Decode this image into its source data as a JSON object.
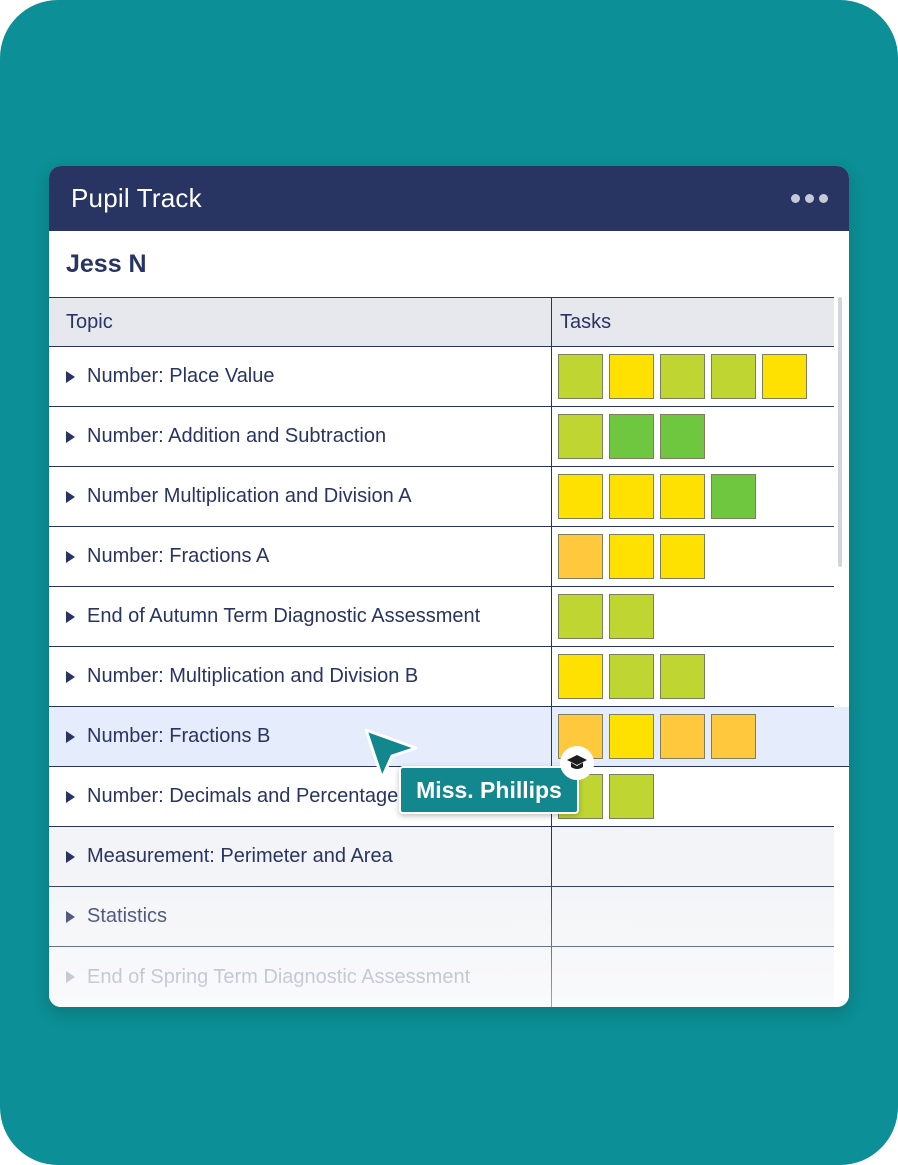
{
  "app": {
    "title": "Pupil Track"
  },
  "pupil": {
    "name": "Jess N"
  },
  "table": {
    "headers": {
      "topic": "Topic",
      "tasks": "Tasks"
    },
    "rows": [
      {
        "topic": "Number: Place Value",
        "tasks": [
          "lime",
          "yellow",
          "lime",
          "lime",
          "yellow"
        ]
      },
      {
        "topic": "Number: Addition and Subtraction",
        "tasks": [
          "lime",
          "green",
          "green"
        ]
      },
      {
        "topic": "Number Multiplication and Division A",
        "tasks": [
          "yellow",
          "yellow",
          "yellow",
          "green"
        ]
      },
      {
        "topic": "Number: Fractions A",
        "tasks": [
          "amber",
          "yellow",
          "yellow"
        ]
      },
      {
        "topic": "End of Autumn Term Diagnostic Assessment",
        "tasks": [
          "lime",
          "lime"
        ]
      },
      {
        "topic": "Number: Multiplication and Division B",
        "tasks": [
          "yellow",
          "lime",
          "lime"
        ]
      },
      {
        "topic": "Number: Fractions B",
        "tasks": [
          "amber",
          "yellow",
          "amber",
          "amber"
        ],
        "highlighted": true
      },
      {
        "topic": "Number: Decimals and Percentages",
        "tasks": [
          "lime",
          "lime"
        ]
      },
      {
        "topic": "Measurement: Perimeter and Area",
        "tasks": []
      },
      {
        "topic": "Statistics",
        "tasks": []
      },
      {
        "topic": "End of Spring Term Diagnostic Assessment",
        "tasks": []
      }
    ]
  },
  "task_colors": {
    "lime": "#bfd531",
    "yellow": "#ffe100",
    "green": "#6fc63f",
    "amber": "#ffc83d"
  },
  "cursor": {
    "label": "Miss. Phillips",
    "icon": "graduation-cap-icon"
  },
  "colors": {
    "background": "#0c8f96",
    "header": "#283461",
    "accent": "#13878e"
  }
}
